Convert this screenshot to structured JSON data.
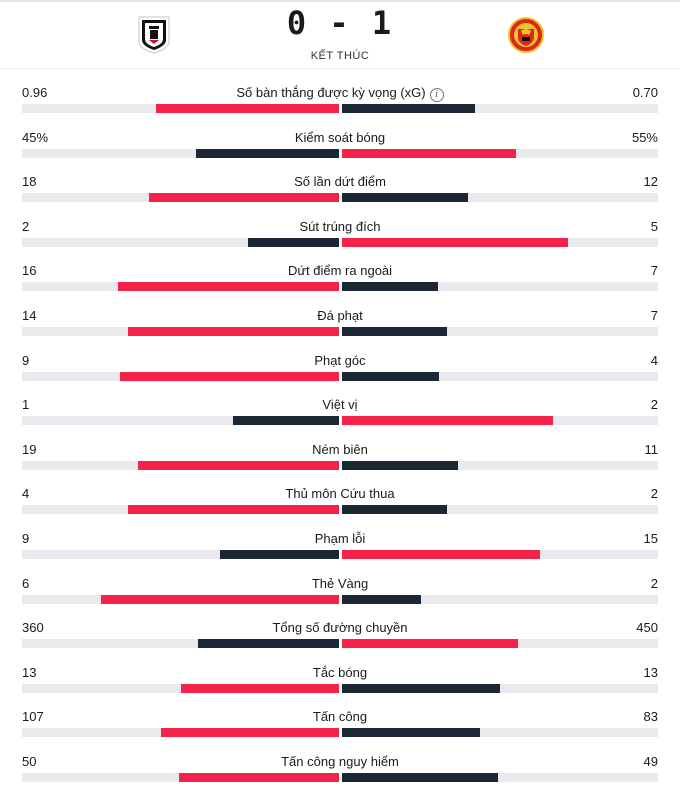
{
  "match": {
    "score": "0 - 1",
    "status": "KẾT THÚC",
    "home_logo": "fulham-crest-icon",
    "away_logo": "manchester-united-crest-icon"
  },
  "colors": {
    "winner": "#f5224a",
    "loser": "#1b2735",
    "track": "#eaeaee"
  },
  "stats": [
    {
      "label": "Số bàn thắng được kỳ vọng (xG)",
      "home": "0.96",
      "away": "0.70",
      "home_share": 0.578,
      "away_share": 0.422,
      "info": true
    },
    {
      "label": "Kiểm soát bóng",
      "home": "45%",
      "away": "55%",
      "home_share": 0.45,
      "away_share": 0.55
    },
    {
      "label": "Số lần dứt điểm",
      "home": "18",
      "away": "12",
      "home_share": 0.6,
      "away_share": 0.4
    },
    {
      "label": "Sút trúng đích",
      "home": "2",
      "away": "5",
      "home_share": 0.286,
      "away_share": 0.714
    },
    {
      "label": "Dứt điểm ra ngoài",
      "home": "16",
      "away": "7",
      "home_share": 0.696,
      "away_share": 0.304
    },
    {
      "label": "Đá phạt",
      "home": "14",
      "away": "7",
      "home_share": 0.667,
      "away_share": 0.333
    },
    {
      "label": "Phạt góc",
      "home": "9",
      "away": "4",
      "home_share": 0.692,
      "away_share": 0.308
    },
    {
      "label": "Việt vị",
      "home": "1",
      "away": "2",
      "home_share": 0.333,
      "away_share": 0.667
    },
    {
      "label": "Ném biên",
      "home": "19",
      "away": "11",
      "home_share": 0.633,
      "away_share": 0.367
    },
    {
      "label": "Thủ môn Cứu thua",
      "home": "4",
      "away": "2",
      "home_share": 0.667,
      "away_share": 0.333
    },
    {
      "label": "Phạm lỗi",
      "home": "9",
      "away": "15",
      "home_share": 0.375,
      "away_share": 0.625
    },
    {
      "label": "Thẻ Vàng",
      "home": "6",
      "away": "2",
      "home_share": 0.75,
      "away_share": 0.25
    },
    {
      "label": "Tổng số đường chuyền",
      "home": "360",
      "away": "450",
      "home_share": 0.444,
      "away_share": 0.556
    },
    {
      "label": "Tắc bóng",
      "home": "13",
      "away": "13",
      "home_share": 0.5,
      "away_share": 0.5
    },
    {
      "label": "Tấn công",
      "home": "107",
      "away": "83",
      "home_share": 0.563,
      "away_share": 0.437
    },
    {
      "label": "Tấn công nguy hiểm",
      "home": "50",
      "away": "49",
      "home_share": 0.505,
      "away_share": 0.495
    }
  ]
}
